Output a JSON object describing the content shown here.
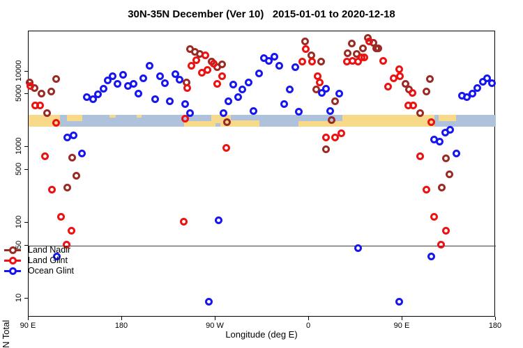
{
  "title": "30N-35N December (Ver 10)   2015-01-01 to 2020-12-18",
  "chart_data": {
    "type": "scatter",
    "title": "30N-35N December (Ver 10)   2015-01-01 to 2020-12-18",
    "xlabel": "Longitude (deg E)",
    "ylabel": "N Total",
    "y_scale": "log10",
    "ylim": [
      5.6,
      34000
    ],
    "grid": "off",
    "legend_position": "bottom-left",
    "x_axis": {
      "min": 90,
      "max": 540,
      "ticks": [
        {
          "pos": 90,
          "label": "90 E"
        },
        {
          "pos": 180,
          "label": "180"
        },
        {
          "pos": 270,
          "label": "90 W"
        },
        {
          "pos": 360,
          "label": "0"
        },
        {
          "pos": 450,
          "label": "90 E"
        },
        {
          "pos": 540,
          "label": "180"
        }
      ]
    },
    "y_axis": {
      "ticks": [
        {
          "value": 10,
          "label": "10"
        },
        {
          "value": 50,
          "label": "50"
        },
        {
          "value": 100,
          "label": "100"
        },
        {
          "value": 500,
          "label": "500"
        },
        {
          "value": 1000,
          "label": "1000"
        },
        {
          "value": 5000,
          "label": "5000"
        },
        {
          "value": 10000,
          "label": "10000"
        }
      ]
    },
    "ref_line": {
      "n": 50,
      "color": "#3c3c3c"
    },
    "series": [
      {
        "name": "Land Nadir",
        "color": "#9A2B24",
        "points": [
          [
            91.3,
            7200
          ],
          [
            96,
            6100
          ],
          [
            102.1,
            5050
          ],
          [
            111.5,
            5400
          ],
          [
            116.2,
            7900
          ],
          [
            108.1,
            2800
          ],
          [
            132.3,
            720
          ],
          [
            136.3,
            420
          ],
          [
            127.6,
            295
          ],
          [
            245.8,
            19600
          ],
          [
            250.5,
            18000
          ],
          [
            255.2,
            16900
          ],
          [
            266.6,
            13400
          ],
          [
            272,
            11500
          ],
          [
            276.7,
            12300
          ],
          [
            242.4,
            7100
          ],
          [
            281.4,
            2160
          ],
          [
            356.6,
            25200
          ],
          [
            362.6,
            16500
          ],
          [
            372,
            13400
          ],
          [
            367.3,
            5800
          ],
          [
            385.4,
            4080
          ],
          [
            382.1,
            2300
          ],
          [
            376.7,
            930
          ],
          [
            401.5,
            23200
          ],
          [
            417,
            27500
          ],
          [
            422.3,
            23700
          ],
          [
            412.3,
            20000
          ],
          [
            425,
            20000
          ],
          [
            397.5,
            17600
          ],
          [
            406.3,
            16900
          ],
          [
            427.1,
            20400
          ],
          [
            452.7,
            6930
          ],
          [
            456.7,
            5730
          ],
          [
            473.5,
            5480
          ],
          [
            476.8,
            7980
          ],
          [
            466.8,
            2790
          ],
          [
            492.2,
            718
          ],
          [
            495.6,
            440
          ],
          [
            488.2,
            295
          ]
        ]
      },
      {
        "name": "Land Glint",
        "color": "#EE1111",
        "points": [
          [
            92,
            6380
          ],
          [
            96.7,
            3520
          ],
          [
            101.4,
            3520
          ],
          [
            116.2,
            2110
          ],
          [
            106.1,
            750
          ],
          [
            112.2,
            277
          ],
          [
            120.9,
            119
          ],
          [
            131,
            78
          ],
          [
            126.9,
            51
          ],
          [
            260,
            16500
          ],
          [
            251.2,
            14200
          ],
          [
            246.5,
            11800
          ],
          [
            268,
            12800
          ],
          [
            256.6,
            9530
          ],
          [
            262,
            10400
          ],
          [
            276.7,
            8750
          ],
          [
            272,
            6930
          ],
          [
            243.1,
            6100
          ],
          [
            280.7,
            970
          ],
          [
            241.1,
            2360
          ],
          [
            239.7,
            103
          ],
          [
            357.3,
            19600
          ],
          [
            363.3,
            13600
          ],
          [
            353.3,
            13400
          ],
          [
            368.7,
            8570
          ],
          [
            370.7,
            7230
          ],
          [
            376.7,
            1330
          ],
          [
            385.5,
            1330
          ],
          [
            391.5,
            1540
          ],
          [
            418.4,
            25200
          ],
          [
            411,
            15500
          ],
          [
            402.2,
            13900
          ],
          [
            396.8,
            13600
          ],
          [
            407.6,
            13400
          ],
          [
            413.6,
            15200
          ],
          [
            431.8,
            13900
          ],
          [
            447.2,
            10800
          ],
          [
            447.9,
            8570
          ],
          [
            441.8,
            8200
          ],
          [
            436.5,
            6240
          ],
          [
            460,
            5160
          ],
          [
            456,
            3520
          ],
          [
            460.6,
            3590
          ],
          [
            478.1,
            2160
          ],
          [
            466.8,
            750
          ],
          [
            473.5,
            277
          ],
          [
            480.8,
            119
          ],
          [
            492.2,
            78
          ],
          [
            487.6,
            51
          ]
        ]
      },
      {
        "name": "Ocean Glint",
        "color": "#1616F0",
        "points": [
          [
            146.4,
            4630
          ],
          [
            151.8,
            4260
          ],
          [
            156.5,
            4940
          ],
          [
            161.9,
            5970
          ],
          [
            165.9,
            7700
          ],
          [
            170.6,
            8750
          ],
          [
            175.3,
            6790
          ],
          [
            181.3,
            9120
          ],
          [
            186,
            6500
          ],
          [
            191.4,
            6930
          ],
          [
            196.1,
            5150
          ],
          [
            200.8,
            8040
          ],
          [
            206.2,
            11800
          ],
          [
            212.2,
            4340
          ],
          [
            216.3,
            8750
          ],
          [
            221.6,
            7080
          ],
          [
            226.3,
            4000
          ],
          [
            231.7,
            9310
          ],
          [
            235.1,
            7870
          ],
          [
            241.1,
            3750
          ],
          [
            245.8,
            2790
          ],
          [
            127.6,
            1330
          ],
          [
            133,
            1430
          ],
          [
            141.7,
            830
          ],
          [
            116.9,
            36
          ],
          [
            272.7,
            107
          ],
          [
            263.3,
            9
          ],
          [
            287.4,
            6650
          ],
          [
            292.1,
            4630
          ],
          [
            296.1,
            5850
          ],
          [
            302.2,
            7230
          ],
          [
            312.2,
            9510
          ],
          [
            282.7,
            4080
          ],
          [
            278,
            2790
          ],
          [
            306.9,
            3030
          ],
          [
            317,
            14900
          ],
          [
            321.6,
            13900
          ],
          [
            327,
            15800
          ],
          [
            331.7,
            12000
          ],
          [
            347.2,
            11300
          ],
          [
            341.8,
            5730
          ],
          [
            336.4,
            3750
          ],
          [
            350.5,
            2970
          ],
          [
            376.7,
            5970
          ],
          [
            372.7,
            5260
          ],
          [
            380.8,
            3030
          ],
          [
            389.5,
            5150
          ],
          [
            407.6,
            46
          ],
          [
            478.1,
            36
          ],
          [
            447.2,
            9
          ],
          [
            491.5,
            1570
          ],
          [
            496.3,
            1680
          ],
          [
            480.8,
            1250
          ],
          [
            486.2,
            1190
          ],
          [
            502.3,
            830
          ],
          [
            507.7,
            4830
          ],
          [
            512.4,
            4540
          ],
          [
            517.8,
            5050
          ],
          [
            522.5,
            6100
          ],
          [
            527.9,
            7380
          ],
          [
            531.9,
            8200
          ],
          [
            536.6,
            7080
          ]
        ]
      }
    ],
    "latitude_band_map": {
      "description": "horizontal strip map of the 30N-35N latitude band",
      "ocean_color": "#AEC2DC",
      "land_color": "#F8D98A",
      "n_center_range": [
        2100,
        3100
      ],
      "segments": [
        {
          "from": 90,
          "to": 540,
          "type": "ocean",
          "part": "full"
        },
        {
          "from": 90,
          "to": 120,
          "type": "land",
          "part": "full"
        },
        {
          "from": 127,
          "to": 142,
          "type": "land",
          "part": "top"
        },
        {
          "from": 168,
          "to": 174,
          "type": "land",
          "part": "sliver"
        },
        {
          "from": 194,
          "to": 199,
          "type": "land",
          "part": "sliver"
        },
        {
          "from": 240,
          "to": 285,
          "type": "land",
          "part": "full"
        },
        {
          "from": 240,
          "to": 266,
          "type": "ocean",
          "part": "top"
        },
        {
          "from": 270,
          "to": 275,
          "type": "ocean",
          "part": "bottomnotch"
        },
        {
          "from": 285,
          "to": 312,
          "type": "land",
          "part": "bottom"
        },
        {
          "from": 350,
          "to": 392,
          "type": "land",
          "part": "full"
        },
        {
          "from": 350,
          "to": 392,
          "type": "ocean",
          "part": "top"
        },
        {
          "from": 392,
          "to": 481,
          "type": "land",
          "part": "full"
        },
        {
          "from": 485,
          "to": 502,
          "type": "land",
          "part": "top"
        }
      ]
    }
  }
}
